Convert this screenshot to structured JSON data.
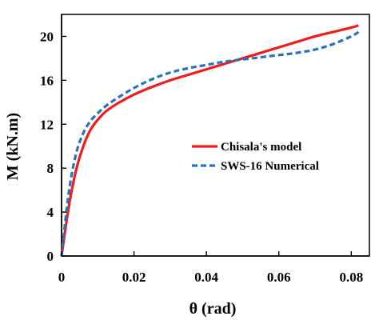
{
  "chart_data": {
    "type": "line",
    "xlabel": "θ (rad)",
    "ylabel": "M (kN.m)",
    "xlim": [
      0,
      0.085
    ],
    "ylim": [
      0,
      22
    ],
    "xticks": [
      0,
      0.02,
      0.04,
      0.06,
      0.08
    ],
    "xtick_labels": [
      "0",
      "0.02",
      "0.04",
      "0.06",
      "0.08"
    ],
    "yticks": [
      0,
      4,
      8,
      12,
      16,
      20
    ],
    "ytick_labels": [
      "0",
      "4",
      "8",
      "12",
      "16",
      "20"
    ],
    "grid": false,
    "legend_position": "center-right",
    "series": [
      {
        "name": "Chisala's model",
        "color": "#ee1c1c",
        "style": "solid",
        "x": [
          0,
          0.002,
          0.004,
          0.006,
          0.008,
          0.01,
          0.012,
          0.015,
          0.02,
          0.025,
          0.03,
          0.035,
          0.04,
          0.045,
          0.05,
          0.055,
          0.06,
          0.065,
          0.07,
          0.075,
          0.08,
          0.082
        ],
        "y": [
          0,
          4.5,
          7.8,
          10.0,
          11.5,
          12.4,
          13.1,
          13.8,
          14.7,
          15.4,
          16.0,
          16.5,
          17.0,
          17.5,
          18.0,
          18.5,
          19.0,
          19.5,
          20.0,
          20.4,
          20.8,
          21.0
        ]
      },
      {
        "name": "SWS-16 Numerical",
        "color": "#2673bd",
        "style": "dashed",
        "x": [
          0,
          0.002,
          0.004,
          0.006,
          0.008,
          0.01,
          0.012,
          0.015,
          0.02,
          0.025,
          0.03,
          0.035,
          0.04,
          0.045,
          0.05,
          0.055,
          0.06,
          0.065,
          0.07,
          0.075,
          0.08,
          0.082
        ],
        "y": [
          0,
          5.8,
          9.3,
          11.2,
          12.3,
          13.0,
          13.6,
          14.3,
          15.3,
          16.1,
          16.7,
          17.1,
          17.4,
          17.7,
          17.9,
          18.1,
          18.3,
          18.5,
          18.8,
          19.3,
          20.0,
          20.4
        ]
      }
    ]
  }
}
